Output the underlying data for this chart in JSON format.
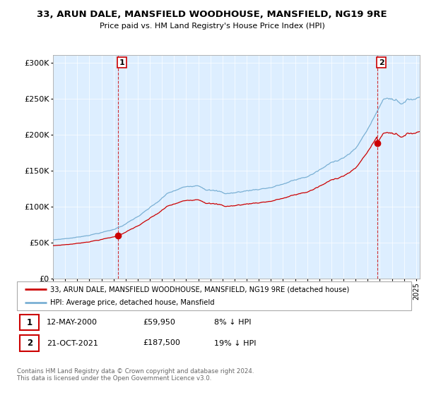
{
  "title": "33, ARUN DALE, MANSFIELD WOODHOUSE, MANSFIELD, NG19 9RE",
  "subtitle": "Price paid vs. HM Land Registry's House Price Index (HPI)",
  "ylabel_ticks": [
    "£0",
    "£50K",
    "£100K",
    "£150K",
    "£200K",
    "£250K",
    "£300K"
  ],
  "ytick_vals": [
    0,
    50000,
    100000,
    150000,
    200000,
    250000,
    300000
  ],
  "ylim": [
    0,
    310000
  ],
  "xlim_start": 1995.0,
  "xlim_end": 2025.3,
  "red_color": "#cc0000",
  "blue_color": "#7ab0d4",
  "bg_color": "#ddeeff",
  "legend_label_red": "33, ARUN DALE, MANSFIELD WOODHOUSE, MANSFIELD, NG19 9RE (detached house)",
  "legend_label_blue": "HPI: Average price, detached house, Mansfield",
  "annotation1_date": "12-MAY-2000",
  "annotation1_price": "£59,950",
  "annotation1_hpi": "8% ↓ HPI",
  "annotation2_date": "21-OCT-2021",
  "annotation2_price": "£187,500",
  "annotation2_hpi": "19% ↓ HPI",
  "footer": "Contains HM Land Registry data © Crown copyright and database right 2024.\nThis data is licensed under the Open Government Licence v3.0.",
  "purchase1_x": 2000.36,
  "purchase1_y": 59950,
  "purchase2_x": 2021.8,
  "purchase2_y": 187500
}
